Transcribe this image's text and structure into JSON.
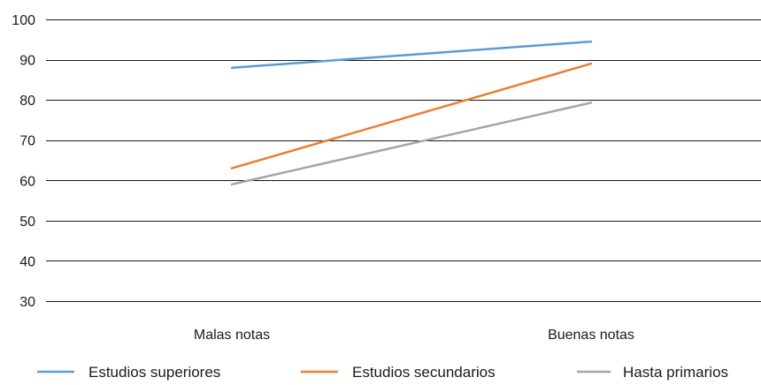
{
  "chart_data": {
    "type": "line",
    "categories": [
      "Malas notas",
      "Buenas notas"
    ],
    "series": [
      {
        "name": "Estudios superiores",
        "values": [
          88,
          94.5
        ],
        "color": "#5b9bd5"
      },
      {
        "name": "Estudios secundarios",
        "values": [
          63,
          89
        ],
        "color": "#ed7d31"
      },
      {
        "name": "Hasta primarios",
        "values": [
          59,
          79.3
        ],
        "color": "#a5a5a5"
      }
    ],
    "title": "",
    "xlabel": "",
    "ylabel": "",
    "ylim": [
      30,
      100
    ],
    "yticks": [
      30,
      40,
      50,
      60,
      70,
      80,
      90,
      100
    ],
    "ytick_labels": [
      "30",
      "40",
      "50",
      "60",
      "70",
      "80",
      "90",
      "100"
    ],
    "grid": true,
    "legend": "bottom"
  }
}
